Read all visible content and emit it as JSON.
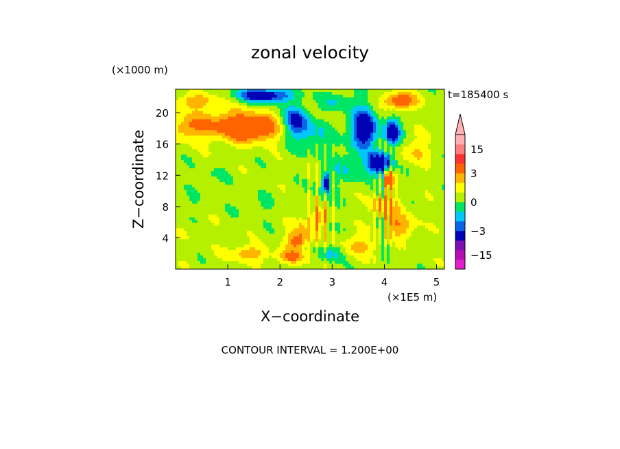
{
  "chart_data": {
    "type": "heatmap",
    "title": "zonal velocity",
    "xlabel": "X−coordinate",
    "ylabel": "Z−coordinate",
    "x_unit": "(×1E5 m)",
    "y_unit": "(×1000 m)",
    "time_label": "t=185400 s",
    "footer": "CONTOUR INTERVAL = 1.200E+00",
    "xlim": [
      0,
      5.15
    ],
    "ylim": [
      0,
      23
    ],
    "x_ticks": [
      1,
      2,
      3,
      4,
      5
    ],
    "y_ticks": [
      4,
      8,
      12,
      16,
      20
    ],
    "x_tick_labels": [
      "1",
      "2",
      "3",
      "4",
      "5"
    ],
    "y_tick_labels": [
      "4",
      "8",
      "12",
      "16",
      "20"
    ],
    "colorbar": {
      "tick_values": [
        15,
        3,
        0,
        -3,
        -15
      ],
      "tick_labels": [
        "15",
        "3",
        "0",
        "−3",
        "−15"
      ],
      "bands": [
        {
          "lo": -21,
          "hi": -17,
          "color": "#e11ec8"
        },
        {
          "lo": -17,
          "hi": -13,
          "color": "#b40fb4"
        },
        {
          "lo": -13,
          "hi": -8,
          "color": "#7d0fb4"
        },
        {
          "lo": -8,
          "hi": -3,
          "color": "#0000b4"
        },
        {
          "lo": -3,
          "hi": -2,
          "color": "#0a64e6"
        },
        {
          "lo": -2,
          "hi": -1,
          "color": "#00c8ff"
        },
        {
          "lo": -1,
          "hi": 0,
          "color": "#00e664"
        },
        {
          "lo": 0,
          "hi": 1,
          "color": "#b4f000"
        },
        {
          "lo": 1,
          "hi": 2,
          "color": "#ffff00"
        },
        {
          "lo": 2,
          "hi": 3,
          "color": "#ffb400"
        },
        {
          "lo": 3,
          "hi": 8,
          "color": "#ff6400"
        },
        {
          "lo": 8,
          "hi": 13,
          "color": "#ff3232"
        },
        {
          "lo": 13,
          "hi": 17,
          "color": "#ff8080"
        },
        {
          "lo": 17,
          "hi": 21,
          "color": "#ffb0b0"
        }
      ]
    },
    "field_background": 0.5,
    "features": [
      {
        "x": 0.5,
        "z": 4.5,
        "rx": 0.35,
        "rz": 1.5,
        "v": 0.3
      },
      {
        "x": 0.6,
        "z": 12,
        "rx": 0.45,
        "rz": 1.3,
        "v": -0.5
      },
      {
        "x": 0.3,
        "z": 8,
        "rx": 0.3,
        "rz": 1.5,
        "v": -0.4
      },
      {
        "x": 0.2,
        "z": 18,
        "rx": 0.3,
        "rz": 1.5,
        "v": 1.5
      },
      {
        "x": 0.9,
        "z": 18.5,
        "rx": 0.8,
        "rz": 2.0,
        "v": 2.5
      },
      {
        "x": 1.5,
        "z": 18,
        "rx": 0.5,
        "rz": 1.6,
        "v": 3.8
      },
      {
        "x": 0.4,
        "z": 21.5,
        "rx": 0.4,
        "rz": 0.9,
        "v": 2.2
      },
      {
        "x": 1.7,
        "z": 22.2,
        "rx": 0.5,
        "rz": 0.9,
        "v": -5
      },
      {
        "x": 2.3,
        "z": 19,
        "rx": 0.25,
        "rz": 1.8,
        "v": -4
      },
      {
        "x": 2.6,
        "z": 17,
        "rx": 0.4,
        "rz": 2.0,
        "v": -1.6
      },
      {
        "x": 3.1,
        "z": 21.5,
        "rx": 0.3,
        "rz": 1.2,
        "v": -1.5
      },
      {
        "x": 3.6,
        "z": 18,
        "rx": 0.25,
        "rz": 2.5,
        "v": -5.5
      },
      {
        "x": 3.9,
        "z": 13.5,
        "rx": 0.22,
        "rz": 1.3,
        "v": -6
      },
      {
        "x": 4.15,
        "z": 17.5,
        "rx": 0.15,
        "rz": 1.6,
        "v": -5
      },
      {
        "x": 4.3,
        "z": 21.5,
        "rx": 0.3,
        "rz": 1.0,
        "v": 4
      },
      {
        "x": 4.1,
        "z": 11.5,
        "rx": 0.08,
        "rz": 1.2,
        "v": 5
      },
      {
        "x": 2.88,
        "z": 11,
        "rx": 0.06,
        "rz": 1.2,
        "v": -6
      },
      {
        "x": 2.75,
        "z": 6.5,
        "rx": 0.15,
        "rz": 1.2,
        "v": 2.2
      },
      {
        "x": 2.5,
        "z": 5,
        "rx": 0.25,
        "rz": 2.0,
        "v": 1.6
      },
      {
        "x": 2.3,
        "z": 3.5,
        "rx": 0.2,
        "rz": 1.3,
        "v": 2.6
      },
      {
        "x": 2.2,
        "z": 1.5,
        "rx": 0.3,
        "rz": 0.8,
        "v": 2.4
      },
      {
        "x": 3.5,
        "z": 3,
        "rx": 0.3,
        "rz": 1.3,
        "v": 2.0
      },
      {
        "x": 4.0,
        "z": 8,
        "rx": 0.3,
        "rz": 1.5,
        "v": 2.2
      },
      {
        "x": 4.3,
        "z": 5.5,
        "rx": 0.3,
        "rz": 1.5,
        "v": 2.4
      },
      {
        "x": 4.6,
        "z": 15,
        "rx": 0.3,
        "rz": 1.5,
        "v": 1.5
      },
      {
        "x": 5.0,
        "z": 18,
        "rx": 0.3,
        "rz": 2.0,
        "v": 0.3
      },
      {
        "x": 1.6,
        "z": 8,
        "rx": 0.4,
        "rz": 1.6,
        "v": -0.5
      },
      {
        "x": 1.4,
        "z": 2,
        "rx": 0.35,
        "rz": 1.0,
        "v": 2.3
      },
      {
        "x": 3.0,
        "z": 2,
        "rx": 0.2,
        "rz": 1.0,
        "v": -2.0
      },
      {
        "x": 3.3,
        "z": 13,
        "rx": 0.3,
        "rz": 2.0,
        "v": -1.5
      }
    ]
  }
}
